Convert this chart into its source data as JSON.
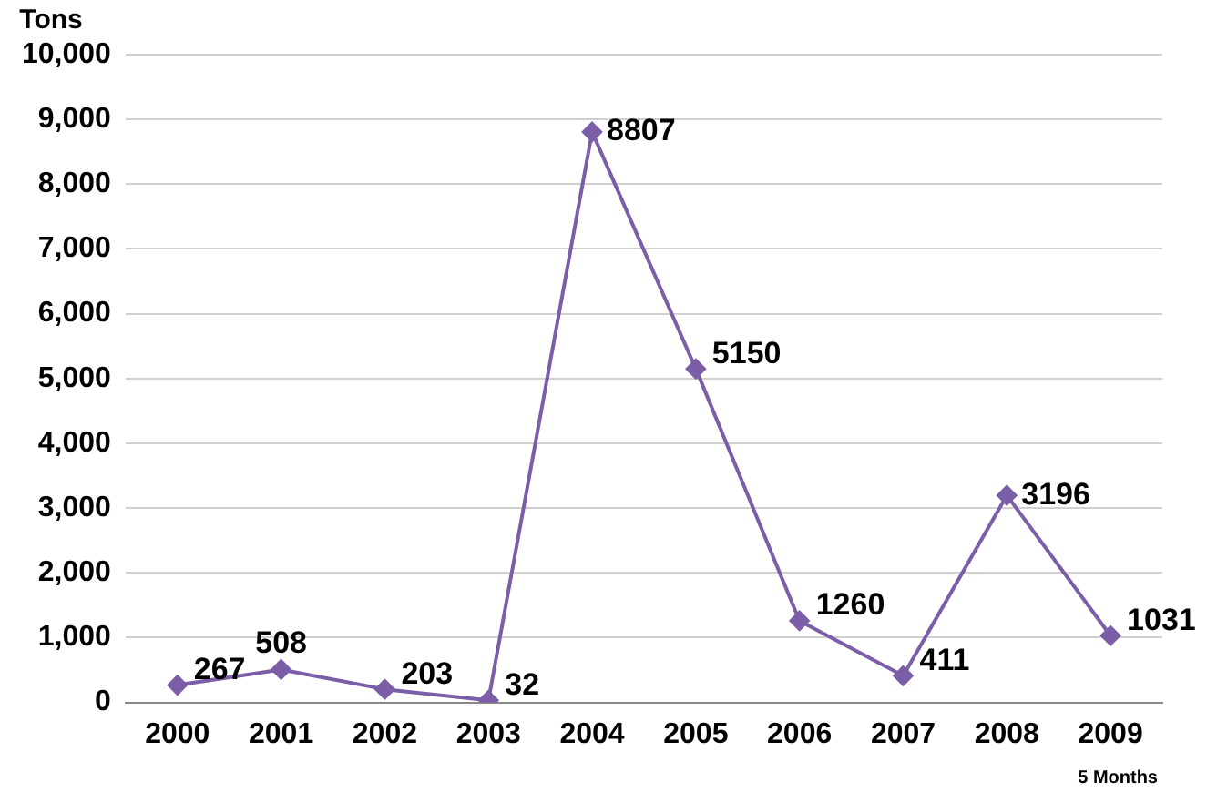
{
  "chart_data": {
    "type": "line",
    "ylabel": "Tons",
    "categories": [
      "2000",
      "2001",
      "2002",
      "2003",
      "2004",
      "2005",
      "2006",
      "2007",
      "2008",
      "2009"
    ],
    "series": [
      {
        "color": "#7b5ea7",
        "values": [
          267,
          508,
          203,
          32,
          8807,
          5150,
          1260,
          411,
          3196,
          1031
        ]
      }
    ],
    "ylim": [
      0,
      10000
    ],
    "yticks": [
      {
        "value": 0,
        "label": "0"
      },
      {
        "value": 1000,
        "label": "1,000"
      },
      {
        "value": 2000,
        "label": "2,000"
      },
      {
        "value": 3000,
        "label": "3,000"
      },
      {
        "value": 4000,
        "label": "4,000"
      },
      {
        "value": 5000,
        "label": "5,000"
      },
      {
        "value": 6000,
        "label": "6,000"
      },
      {
        "value": 7000,
        "label": "7,000"
      },
      {
        "value": 8000,
        "label": "8,000"
      },
      {
        "value": 9000,
        "label": "9,000"
      },
      {
        "value": 10000,
        "label": "10,000"
      }
    ],
    "grid": "y",
    "legend": false,
    "marker": "diamond",
    "line_style": "solid",
    "data_labels": true,
    "annotations": [
      "5 Months"
    ]
  }
}
